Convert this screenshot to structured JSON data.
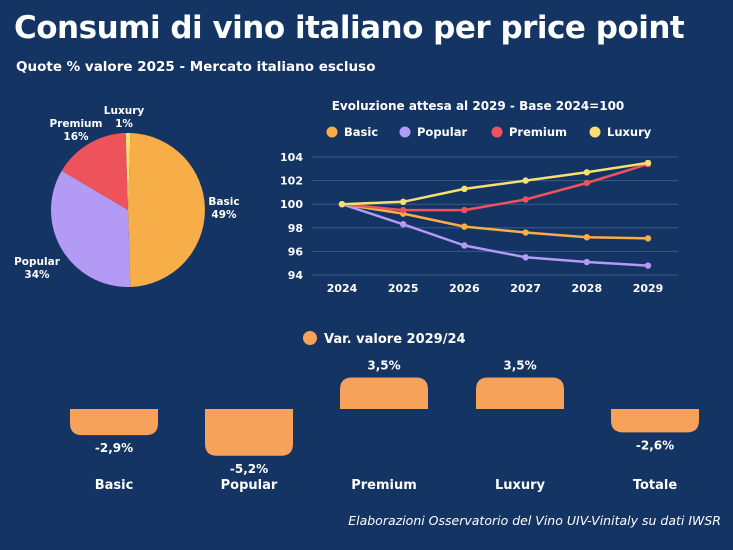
{
  "title": "Consumi di vino italiano per price point",
  "subtitle": "Quote % valore 2025 - Mercato italiano escluso",
  "footer": "Elaborazioni Osservatorio del Vino UIV-Vinitaly su dati IWSR",
  "colors": {
    "background": "#143463",
    "basic": "#F8AE48",
    "popular": "#B39AF5",
    "premium": "#EE535B",
    "luxury": "#F7E071",
    "bars": "#F7A25A",
    "grid": "#3A5A8C"
  },
  "chart_data": [
    {
      "type": "pie",
      "labels": [
        "Basic",
        "Popular",
        "Premium",
        "Luxury"
      ],
      "values": [
        49,
        34,
        16,
        1
      ],
      "value_labels": [
        "49%",
        "34%",
        "16%",
        "1%"
      ]
    },
    {
      "type": "line",
      "title": "Evoluzione attesa al 2029 - Base 2024=100",
      "x": [
        "2024",
        "2025",
        "2026",
        "2027",
        "2028",
        "2029"
      ],
      "yticks": [
        "94",
        "96",
        "98",
        "100",
        "102",
        "104"
      ],
      "ylim": [
        94,
        104
      ],
      "legend_position": "top",
      "grid": true,
      "series": [
        {
          "name": "Basic",
          "values": [
            100,
            99.2,
            98.1,
            97.6,
            97.2,
            97.1
          ]
        },
        {
          "name": "Popular",
          "values": [
            100,
            98.3,
            96.5,
            95.5,
            95.1,
            94.8
          ]
        },
        {
          "name": "Premium",
          "values": [
            100,
            99.5,
            99.5,
            100.4,
            101.8,
            103.4
          ]
        },
        {
          "name": "Luxury",
          "values": [
            100,
            100.2,
            101.3,
            102.0,
            102.7,
            103.5
          ]
        }
      ]
    },
    {
      "type": "bar",
      "legend": "Var. valore 2029/24",
      "categories": [
        "Basic",
        "Popular",
        "Premium",
        "Luxury",
        "Totale"
      ],
      "values": [
        -2.9,
        -5.2,
        3.5,
        3.5,
        -2.6
      ],
      "value_labels": [
        "-2,9%",
        "-5,2%",
        "3,5%",
        "3,5%",
        "-2,6%"
      ]
    }
  ]
}
